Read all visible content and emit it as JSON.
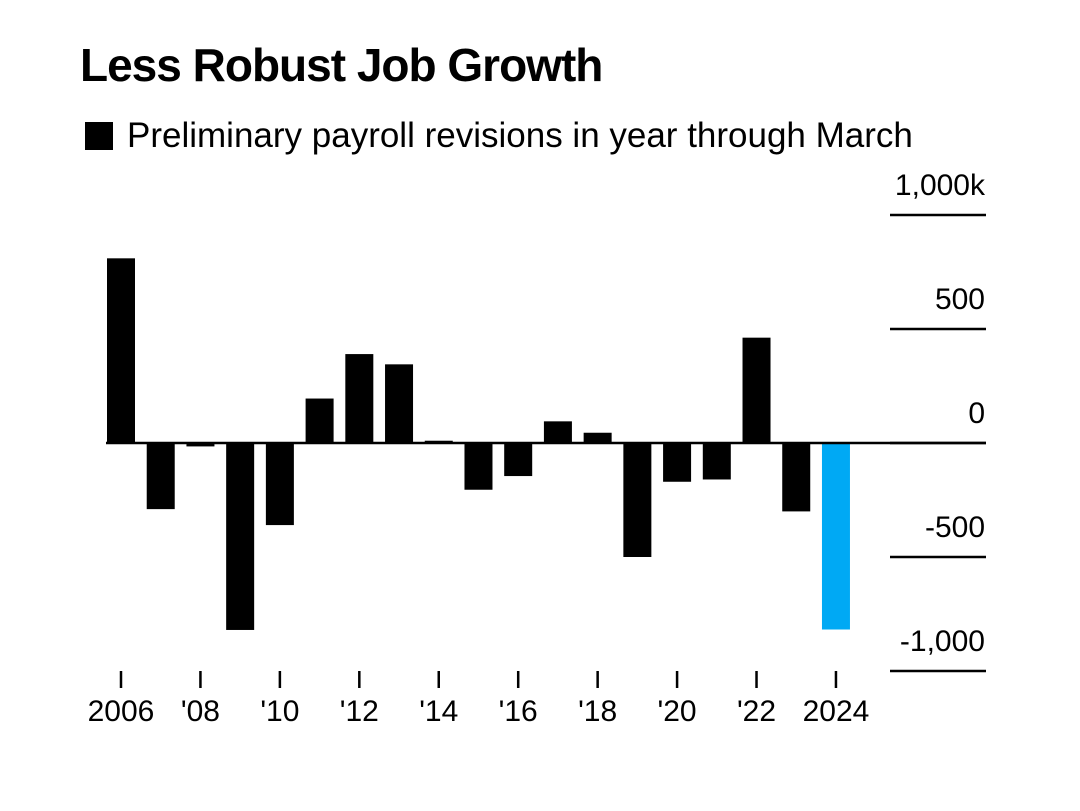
{
  "title": "Less Robust Job Growth",
  "legend": {
    "label": "Preliminary payroll revisions in year through March",
    "color": "#000000"
  },
  "chart_data": {
    "type": "bar",
    "title": "Less Robust Job Growth",
    "subtitle": "Preliminary payroll revisions in year through March",
    "xlabel": "",
    "ylabel": "",
    "categories": [
      "2006",
      "2007",
      "2008",
      "2009",
      "2010",
      "2011",
      "2012",
      "2013",
      "2014",
      "2015",
      "2016",
      "2017",
      "2018",
      "2019",
      "2020",
      "2021",
      "2022",
      "2023",
      "2024"
    ],
    "values": [
      810,
      -290,
      -15,
      -820,
      -360,
      195,
      390,
      345,
      10,
      -205,
      -145,
      95,
      45,
      -500,
      -170,
      -160,
      462,
      -300,
      -818
    ],
    "highlight_index": 18,
    "colors": {
      "default": "#000000",
      "highlight": "#00a9f4"
    },
    "ylim": [
      -1000,
      1000
    ],
    "y_ticks": [
      1000,
      500,
      0,
      -500,
      -1000
    ],
    "y_tick_labels": [
      "1,000k",
      "500",
      "0",
      "-500",
      "-1,000"
    ],
    "x_tick_labels": [
      {
        "category": "2006",
        "label": "2006"
      },
      {
        "category": "2008",
        "label": "'08"
      },
      {
        "category": "2010",
        "label": "'10"
      },
      {
        "category": "2012",
        "label": "'12"
      },
      {
        "category": "2014",
        "label": "'14"
      },
      {
        "category": "2016",
        "label": "'16"
      },
      {
        "category": "2018",
        "label": "'18"
      },
      {
        "category": "2020",
        "label": "'20"
      },
      {
        "category": "2022",
        "label": "'22"
      },
      {
        "category": "2024",
        "label": "2024"
      }
    ],
    "y_axis_position": "right",
    "legend_position": "top-left"
  }
}
